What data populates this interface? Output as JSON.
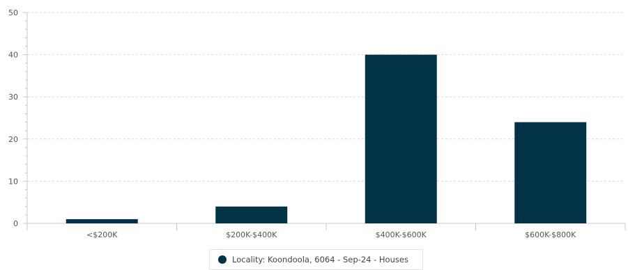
{
  "chart_data": {
    "type": "bar",
    "categories": [
      "<$200K",
      "$200K-$400K",
      "$400K-$600K",
      "$600K-$800K"
    ],
    "series": [
      {
        "name": "Locality: Koondoola, 6064 - Sep-24 - Houses",
        "values": [
          1,
          4,
          40,
          24
        ]
      }
    ],
    "ylim": [
      0,
      50
    ],
    "yticks": [
      0,
      10,
      20,
      30,
      40,
      50
    ],
    "grid": true,
    "legend_position": "bottom-center",
    "title": "",
    "xlabel": "",
    "ylabel": ""
  },
  "colors": {
    "bar": "#023246",
    "grid": "#d9d9d9",
    "axis": "#c8c8c8",
    "text": "#555555"
  }
}
